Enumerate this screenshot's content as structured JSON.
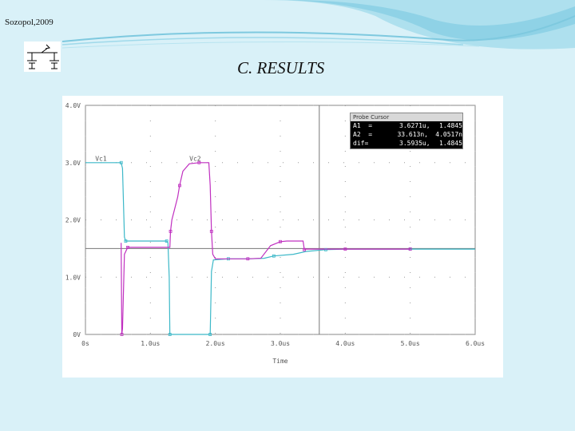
{
  "header": {
    "text": "Sozopol,2009"
  },
  "slide_title": "C. RESULTS",
  "logo": {
    "icon": "circuit-symbol-icon"
  },
  "probe_cursor": {
    "title": "Probe Cursor",
    "rows": [
      {
        "label": "A1  =",
        "time": "3.6271u,",
        "value": "1.4845"
      },
      {
        "label": "A2  =",
        "time": "33.613n,",
        "value": "4.0517n"
      },
      {
        "label": "dif=",
        "time": "3.5935u,",
        "value": "1.4845"
      }
    ]
  },
  "chart_data": {
    "type": "line",
    "xlabel": "Time",
    "x_tick_labels": [
      "0s",
      "1.0us",
      "2.0us",
      "3.0us",
      "4.0us",
      "5.0us",
      "6.0us"
    ],
    "y_tick_labels": [
      "0V",
      "1.0V",
      "2.0V",
      "3.0V",
      "4.0V"
    ],
    "xlim": [
      0,
      6.0
    ],
    "ylim": [
      0,
      4.0
    ],
    "grid": "dotted",
    "reference_line_y": 1.5,
    "cursor_x": 3.6,
    "series": [
      {
        "name": "Vc1",
        "color": "#3cb8c8",
        "x": [
          0,
          0.55,
          0.57,
          0.6,
          0.62,
          0.75,
          1.0,
          1.25,
          1.27,
          1.29,
          1.3,
          1.6,
          1.9,
          1.92,
          1.94,
          1.97,
          2.2,
          2.5,
          2.75,
          2.9,
          3.2,
          3.4,
          3.7,
          4.0,
          4.5,
          5.0,
          5.4,
          6.0
        ],
        "y": [
          3.0,
          3.0,
          2.9,
          1.7,
          1.63,
          1.63,
          1.63,
          1.63,
          1.6,
          1.0,
          0,
          0,
          0,
          0,
          1.1,
          1.3,
          1.32,
          1.32,
          1.33,
          1.37,
          1.4,
          1.45,
          1.48,
          1.49,
          1.49,
          1.49,
          1.49,
          1.49
        ]
      },
      {
        "name": "Vc2",
        "color": "#c030c0",
        "x": [
          0.55,
          0.56,
          0.57,
          0.6,
          0.65,
          0.9,
          1.3,
          1.31,
          1.33,
          1.42,
          1.45,
          1.5,
          1.6,
          1.75,
          1.9,
          1.92,
          1.94,
          1.96,
          2.0,
          2.5,
          2.7,
          2.85,
          3.0,
          3.1,
          3.35,
          3.37,
          3.4,
          3.45,
          4.0,
          4.6,
          4.9,
          5.0
        ],
        "y": [
          1.6,
          0,
          0.1,
          1.4,
          1.52,
          1.52,
          1.52,
          1.8,
          2.0,
          2.4,
          2.6,
          2.85,
          2.98,
          3.0,
          3.0,
          2.6,
          1.8,
          1.4,
          1.32,
          1.32,
          1.33,
          1.55,
          1.62,
          1.63,
          1.63,
          1.48,
          1.49,
          1.49,
          1.49,
          1.49,
          1.49,
          1.49
        ]
      }
    ]
  }
}
